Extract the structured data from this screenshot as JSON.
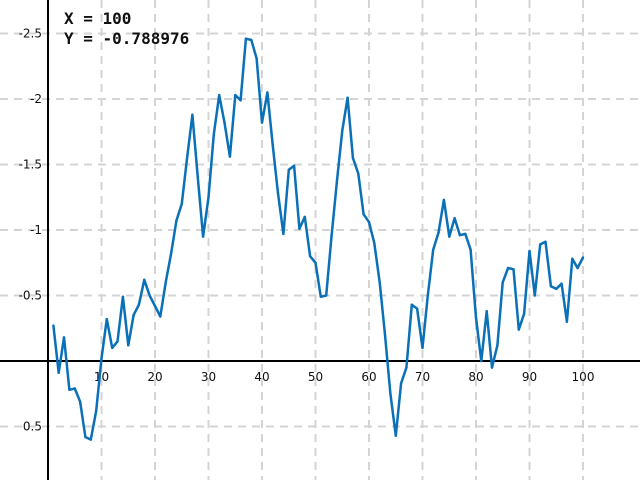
{
  "readout": {
    "x_label": "X = ",
    "x_value": "100",
    "y_label": "Y = ",
    "y_value": "-0.788976"
  },
  "chart_data": {
    "type": "line",
    "title": "",
    "xlabel": "",
    "ylabel": "",
    "y_axis_inverted": true,
    "xlim": [
      -0.5,
      110
    ],
    "ylim": [
      -2.75,
      0.9
    ],
    "grid": true,
    "x_ticks": [
      10,
      20,
      30,
      40,
      50,
      60,
      70,
      80,
      90,
      100
    ],
    "y_ticks": [
      -2.5,
      -2,
      -1.5,
      -1,
      -0.5,
      0.5
    ],
    "colors": {
      "line": "#0a70b8",
      "grid": "#d4d4d4",
      "axis": "#000000"
    },
    "series": [
      {
        "x": [
          1,
          2,
          3,
          4,
          5,
          6,
          7,
          8,
          9,
          10,
          11,
          12,
          13,
          14,
          15,
          16,
          17,
          18,
          19,
          20,
          21,
          22,
          23,
          24,
          25,
          26,
          27,
          28,
          29,
          30,
          31,
          32,
          33,
          34,
          35,
          36,
          37,
          38,
          39,
          40,
          41,
          42,
          43,
          44,
          45,
          46,
          47,
          48,
          49,
          50,
          51,
          52,
          53,
          54,
          55,
          56,
          57,
          58,
          59,
          60,
          61,
          62,
          63,
          64,
          65,
          66,
          67,
          68,
          69,
          70,
          71,
          72,
          73,
          74,
          75,
          76,
          77,
          78,
          79,
          80,
          81,
          82,
          83,
          84,
          85,
          86,
          87,
          88,
          89,
          90,
          91,
          92,
          93,
          94,
          95,
          96,
          97,
          98,
          99,
          100
        ],
        "y": [
          -0.27,
          0.09,
          -0.18,
          0.22,
          0.21,
          0.31,
          0.58,
          0.6,
          0.38,
          -0.02,
          -0.32,
          -0.1,
          -0.15,
          -0.49,
          -0.12,
          -0.35,
          -0.43,
          -0.62,
          -0.5,
          -0.42,
          -0.34,
          -0.6,
          -0.82,
          -1.07,
          -1.2,
          -1.55,
          -1.88,
          -1.4,
          -0.95,
          -1.25,
          -1.73,
          -2.03,
          -1.82,
          -1.56,
          -2.03,
          -1.99,
          -2.46,
          -2.45,
          -2.31,
          -1.82,
          -2.05,
          -1.65,
          -1.28,
          -0.97,
          -1.46,
          -1.49,
          -1.01,
          -1.1,
          -0.8,
          -0.75,
          -0.49,
          -0.5,
          -0.95,
          -1.37,
          -1.76,
          -2.01,
          -1.55,
          -1.43,
          -1.12,
          -1.06,
          -0.9,
          -0.6,
          -0.2,
          0.25,
          0.57,
          0.17,
          0.05,
          -0.43,
          -0.4,
          -0.1,
          -0.5,
          -0.85,
          -0.98,
          -1.23,
          -0.95,
          -1.09,
          -0.96,
          -0.97,
          -0.85,
          -0.33,
          0.0,
          -0.38,
          0.05,
          -0.12,
          -0.6,
          -0.71,
          -0.7,
          -0.24,
          -0.36,
          -0.84,
          -0.5,
          -0.89,
          -0.91,
          -0.57,
          -0.55,
          -0.59,
          -0.3,
          -0.78,
          -0.71,
          -0.79
        ]
      }
    ]
  }
}
